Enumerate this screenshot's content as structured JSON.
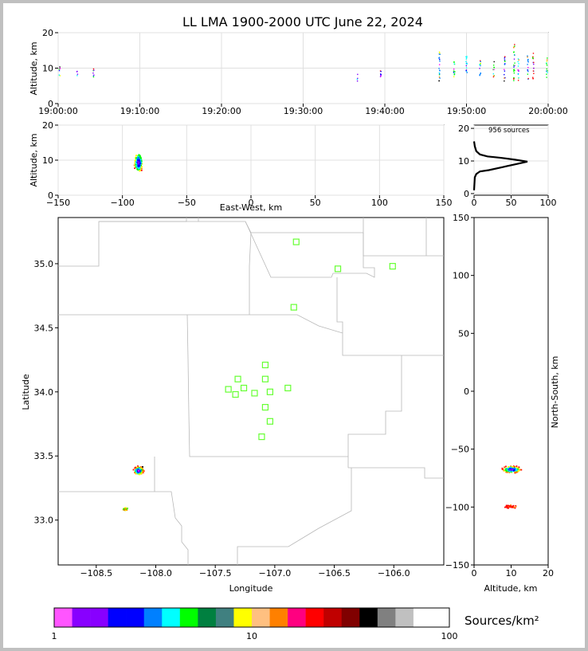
{
  "chart_data": [
    {
      "panel": "altitude-vs-time",
      "type": "scatter",
      "title": "LL LMA 1900-2000 UTC June 22, 2024",
      "ylabel": "Altitude, km",
      "xlim": [
        "19:00:00",
        "20:00:00"
      ],
      "ylim": [
        0,
        20
      ],
      "x_ticks": [
        "19:00:00",
        "19:10:00",
        "19:20:00",
        "19:30:00",
        "19:40:00",
        "19:50:00",
        "20:00:00"
      ],
      "y_ticks": [
        "0",
        "10",
        "20"
      ],
      "grid": true,
      "columns": [
        {
          "t": "19:00:10",
          "alt": [
            7.5,
            10.5
          ],
          "c": "#ff00ff"
        },
        {
          "t": "19:02:20",
          "alt": [
            7.5,
            9.5
          ],
          "c": "#8000ff"
        },
        {
          "t": "19:04:20",
          "alt": [
            7.0,
            10.0
          ],
          "c": "#8000ff"
        },
        {
          "t": "19:36:40",
          "alt": [
            6.5,
            8.5
          ],
          "c": "#8000ff"
        },
        {
          "t": "19:39:30",
          "alt": [
            6.5,
            9.5
          ],
          "c": "#0000ff"
        },
        {
          "t": "19:46:40",
          "alt": [
            6.5,
            16.0
          ],
          "c": "#0080ff"
        },
        {
          "t": "19:48:30",
          "alt": [
            7.0,
            13.0
          ],
          "c": "#00ff00"
        },
        {
          "t": "19:50:00",
          "alt": [
            7.0,
            13.5
          ],
          "c": "#00ffff"
        },
        {
          "t": "19:51:40",
          "alt": [
            7.0,
            12.5
          ],
          "c": "#0080ff"
        },
        {
          "t": "19:53:20",
          "alt": [
            7.5,
            12.0
          ],
          "c": "#00ff00"
        },
        {
          "t": "19:54:40",
          "alt": [
            6.5,
            13.5
          ],
          "c": "#0000ff"
        },
        {
          "t": "19:55:50",
          "alt": [
            6.5,
            17.0
          ],
          "c": "#00ff00"
        },
        {
          "t": "19:56:20",
          "alt": [
            6.5,
            13.0
          ],
          "c": "#00ffff"
        },
        {
          "t": "19:57:30",
          "alt": [
            7.0,
            14.0
          ],
          "c": "#0080ff"
        },
        {
          "t": "19:58:10",
          "alt": [
            7.0,
            14.5
          ],
          "c": "#ff0000"
        },
        {
          "t": "19:59:50",
          "alt": [
            7.5,
            13.0
          ],
          "c": "#00ff00"
        }
      ]
    },
    {
      "panel": "altitude-vs-east-west",
      "type": "scatter",
      "xlabel": "East-West, km",
      "ylabel": "Altitude, km",
      "xlim": [
        -150,
        150
      ],
      "ylim": [
        0,
        20
      ],
      "x_ticks": [
        "−150",
        "−100",
        "−50",
        "0",
        "50",
        "100",
        "150"
      ],
      "y_ticks": [
        "0",
        "10",
        "20"
      ],
      "grid": true,
      "cluster": {
        "x": -88,
        "alt": 9.5,
        "x_spread": 4,
        "alt_spread": 3.5
      }
    },
    {
      "panel": "altitude-histogram",
      "type": "line",
      "annotation": "956 sources",
      "xlim": [
        0,
        100
      ],
      "ylim": [
        0,
        20
      ],
      "x_ticks": [
        "0",
        "50",
        "100"
      ],
      "y_ticks": [
        "0",
        "10",
        "20"
      ],
      "curve": [
        [
          0,
          1
        ],
        [
          1,
          5
        ],
        [
          3,
          6
        ],
        [
          8,
          6.8
        ],
        [
          20,
          7.2
        ],
        [
          40,
          8.2
        ],
        [
          60,
          9.2
        ],
        [
          72,
          9.8
        ],
        [
          55,
          10.4
        ],
        [
          35,
          11
        ],
        [
          18,
          11.4
        ],
        [
          8,
          12
        ],
        [
          3,
          13
        ],
        [
          1,
          14.5
        ],
        [
          0,
          16
        ]
      ]
    },
    {
      "panel": "plan-view-map",
      "type": "scatter",
      "xlabel": "Longitude",
      "ylabel": "Latitude",
      "xlim": [
        -108.82,
        -105.58
      ],
      "ylim": [
        32.65,
        35.36
      ],
      "x_ticks": [
        "−108.5",
        "−108.0",
        "−107.5",
        "−107.0",
        "−106.5",
        "−106.0"
      ],
      "y_ticks": [
        "33.0",
        "33.5",
        "34.0",
        "34.5",
        "35.0"
      ],
      "stations": [
        {
          "lon": -106.82,
          "lat": 35.17
        },
        {
          "lon": -106.47,
          "lat": 34.96
        },
        {
          "lon": -106.01,
          "lat": 34.98
        },
        {
          "lon": -106.84,
          "lat": 34.66
        },
        {
          "lon": -107.08,
          "lat": 34.21
        },
        {
          "lon": -107.08,
          "lat": 34.1
        },
        {
          "lon": -107.31,
          "lat": 34.1
        },
        {
          "lon": -107.39,
          "lat": 34.02
        },
        {
          "lon": -107.26,
          "lat": 34.03
        },
        {
          "lon": -107.33,
          "lat": 33.98
        },
        {
          "lon": -107.17,
          "lat": 33.99
        },
        {
          "lon": -107.04,
          "lat": 34.0
        },
        {
          "lon": -106.89,
          "lat": 34.03
        },
        {
          "lon": -107.08,
          "lat": 33.88
        },
        {
          "lon": -107.04,
          "lat": 33.77
        },
        {
          "lon": -107.11,
          "lat": 33.65
        }
      ],
      "clusters": [
        {
          "lon": -108.15,
          "lat": 33.39,
          "spread_lon": 0.06,
          "spread_lat": 0.05
        },
        {
          "lon": -108.26,
          "lat": 33.09,
          "spread_lon": 0.03,
          "spread_lat": 0.015
        }
      ]
    },
    {
      "panel": "north-south-vs-altitude",
      "type": "scatter",
      "xlabel": "Altitude, km",
      "ylabel": "North-South, km",
      "xlim": [
        0,
        20
      ],
      "ylim": [
        -150,
        150
      ],
      "x_ticks": [
        "0",
        "10",
        "20"
      ],
      "y_ticks": [
        "−150",
        "−100",
        "−50",
        "0",
        "50",
        "100",
        "150"
      ],
      "clusters": [
        {
          "alt": 10,
          "ns": -67,
          "alt_spread": 3.5,
          "ns_spread": 4
        },
        {
          "alt": 9.5,
          "ns": -99,
          "alt_spread": 2.5,
          "ns_spread": 2
        }
      ]
    },
    {
      "panel": "colorbar",
      "type": "heatmap",
      "label": "Sources/km²",
      "scale": "log",
      "range": [
        1,
        100
      ],
      "tick_labels": [
        "1",
        "10",
        "100"
      ],
      "colors": [
        "#ff55ff",
        "#8800ff",
        "#8800ff",
        "#0000ff",
        "#0000ff",
        "#0080ff",
        "#00ffff",
        "#00ff00",
        "#008040",
        "#408080",
        "#ffff00",
        "#ffc080",
        "#ff8000",
        "#ff0080",
        "#ff0000",
        "#c00000",
        "#800000",
        "#000000",
        "#808080",
        "#c0c0c0",
        "#ffffff",
        "#ffffff"
      ]
    }
  ]
}
